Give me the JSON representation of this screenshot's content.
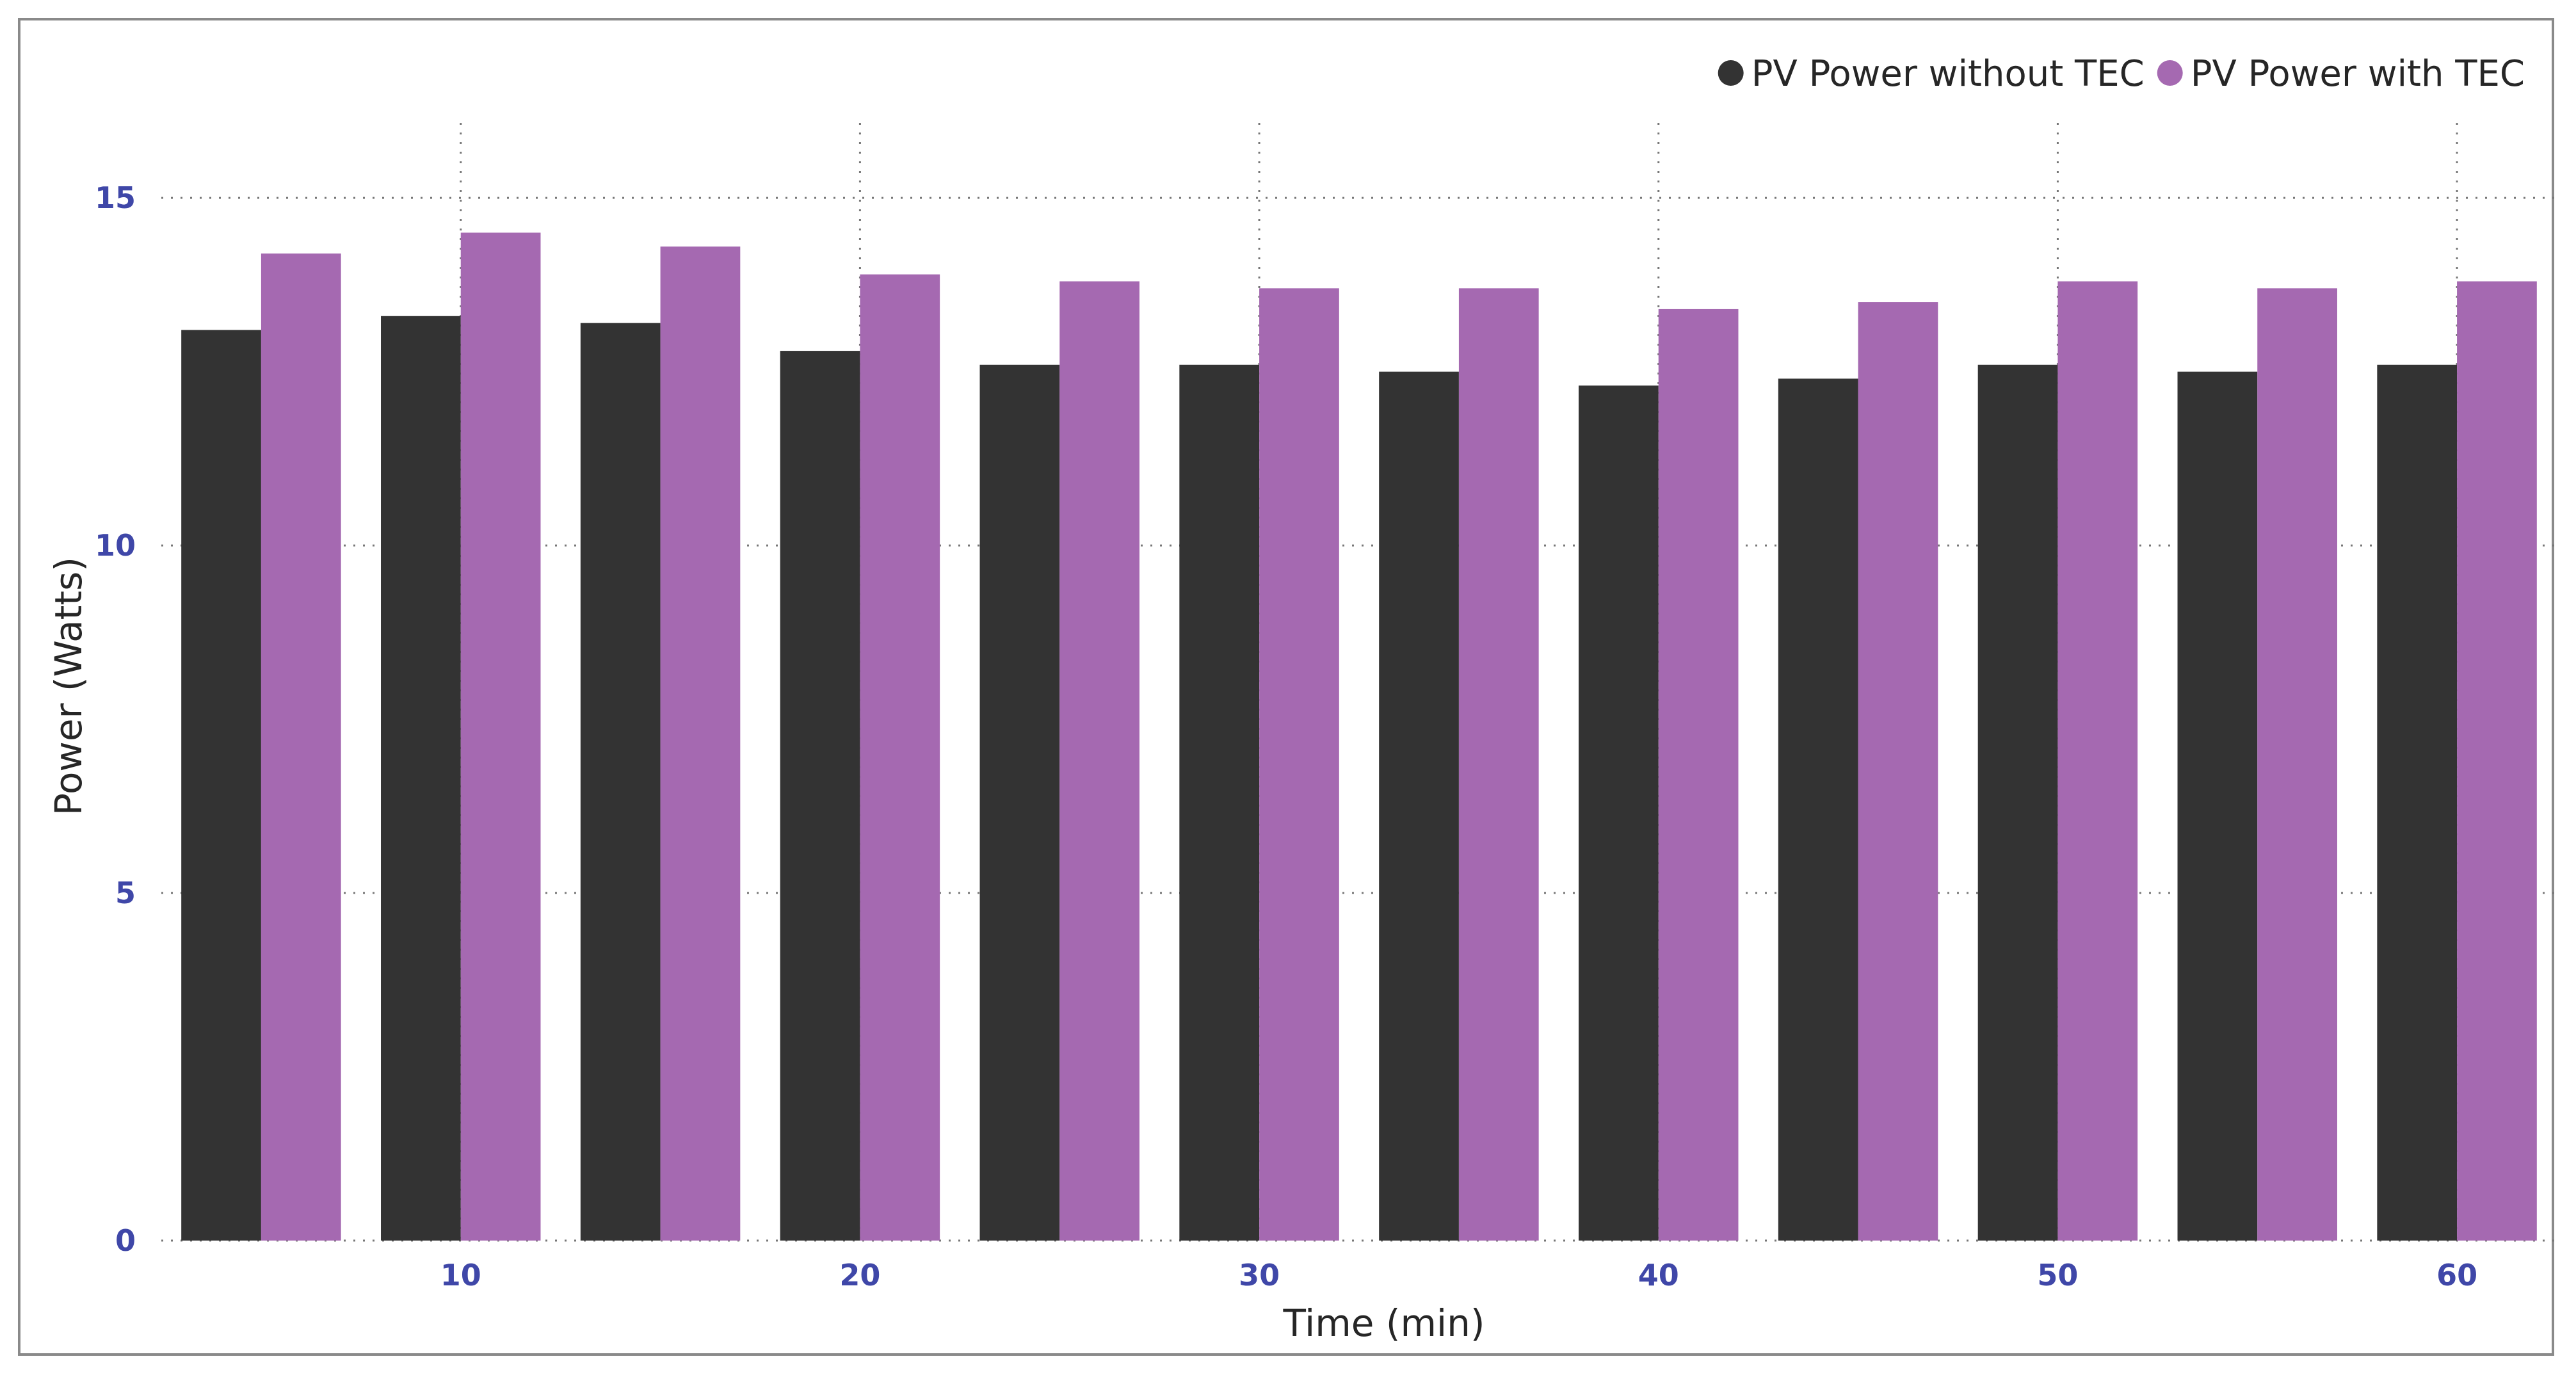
{
  "chart_data": {
    "type": "bar",
    "xlabel": "Time (min)",
    "ylabel": "Power (Watts)",
    "ylim": [
      0,
      17
    ],
    "yticks": [
      0,
      5,
      10,
      15
    ],
    "x_ticks": [
      10,
      20,
      30,
      40,
      50,
      60
    ],
    "x": [
      5,
      10,
      15,
      20,
      25,
      30,
      35,
      40,
      45,
      50,
      55,
      60
    ],
    "series": [
      {
        "name": "PV Power without TEC",
        "color": "#333333",
        "values": [
          13.1,
          13.3,
          13.2,
          12.8,
          12.6,
          12.6,
          12.5,
          12.3,
          12.4,
          12.6,
          12.5,
          12.6
        ]
      },
      {
        "name": "PV Power with TEC",
        "color": "#a569b1",
        "values": [
          14.2,
          14.5,
          14.3,
          13.9,
          13.8,
          13.7,
          13.7,
          13.4,
          13.5,
          13.8,
          13.7,
          13.8
        ]
      }
    ],
    "grid": "dotted",
    "legend": "top-right"
  }
}
